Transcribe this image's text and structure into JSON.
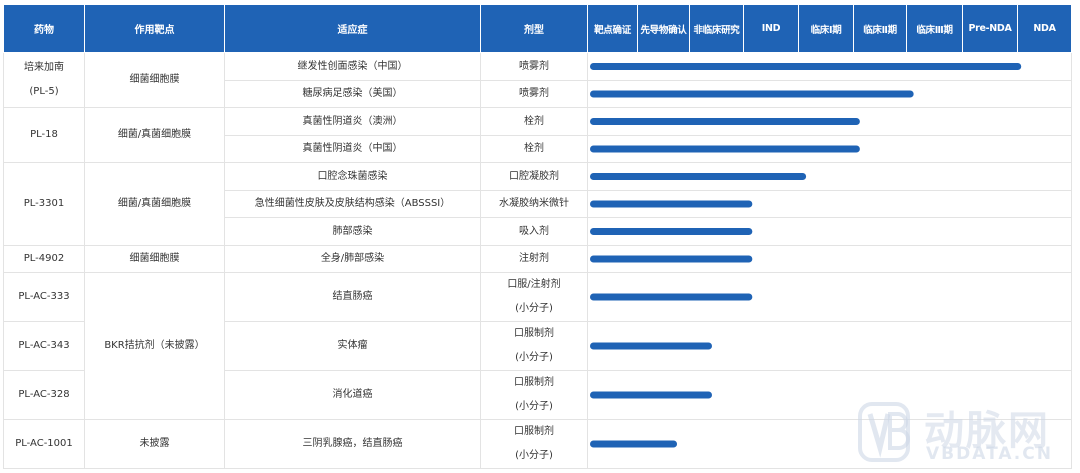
{
  "headers": {
    "drug": "药物",
    "target": "作用靶点",
    "indication": "适应症",
    "form": "剂型",
    "stages": [
      "靶点确证",
      "先导物确认",
      "非临床研究",
      "IND",
      "临床Ⅰ期",
      "临床Ⅱ期",
      "临床Ⅲ期",
      "Pre-NDA",
      "NDA"
    ]
  },
  "chart_data": {
    "type": "bar",
    "orientation": "horizontal",
    "stages": [
      "靶点确证",
      "先导物确认",
      "非临床研究",
      "IND",
      "临床Ⅰ期",
      "临床Ⅱ期",
      "临床Ⅲ期",
      "Pre-NDA",
      "NDA"
    ],
    "xlim": [
      0,
      9
    ],
    "bar_color": "#1f63b5",
    "groups": [
      {
        "drug": [
          "培来加南",
          "(PL-5)"
        ],
        "target": "细菌细胞膜",
        "rows": [
          {
            "indication": "继发性创面感染（中国）",
            "form": [
              "喷雾剂"
            ],
            "progress": 8.0
          },
          {
            "indication": "糖尿病足感染（美国）",
            "form": [
              "喷雾剂"
            ],
            "progress": 6.0
          }
        ]
      },
      {
        "drug": [
          "PL-18"
        ],
        "target": "细菌/真菌细胞膜",
        "rows": [
          {
            "indication": "真菌性阴道炎（澳洲）",
            "form": [
              "栓剂"
            ],
            "progress": 5.0
          },
          {
            "indication": "真菌性阴道炎（中国）",
            "form": [
              "栓剂"
            ],
            "progress": 5.0
          }
        ]
      },
      {
        "drug": [
          "PL-3301"
        ],
        "target": "细菌/真菌细胞膜",
        "rows": [
          {
            "indication": "口腔念珠菌感染",
            "form": [
              "口腔凝胶剂"
            ],
            "progress": 4.0
          },
          {
            "indication": "急性细菌性皮肤及皮肤结构感染（ABSSSI）",
            "form": [
              "水凝胶纳米微针"
            ],
            "progress": 3.0
          },
          {
            "indication": "肺部感染",
            "form": [
              "吸入剂"
            ],
            "progress": 3.0
          }
        ]
      },
      {
        "drug": [
          "PL-4902"
        ],
        "target": "细菌细胞膜",
        "rows": [
          {
            "indication": "全身/肺部感染",
            "form": [
              "注射剂"
            ],
            "progress": 3.0
          }
        ]
      },
      {
        "drug": [
          "PL-AC-333"
        ],
        "target": "BKR拮抗剂（未披露）",
        "target_rowspan": 3,
        "rows": [
          {
            "indication": "结直肠癌",
            "form": [
              "口服/注射剂",
              "(小分子)"
            ],
            "progress": 3.0
          }
        ]
      },
      {
        "drug": [
          "PL-AC-343"
        ],
        "target": null,
        "rows": [
          {
            "indication": "实体瘤",
            "form": [
              "口服制剂",
              "(小分子)"
            ],
            "progress": 2.25
          }
        ]
      },
      {
        "drug": [
          "PL-AC-328"
        ],
        "target": null,
        "rows": [
          {
            "indication": "消化道癌",
            "form": [
              "口服制剂",
              "(小分子)"
            ],
            "progress": 2.25
          }
        ]
      },
      {
        "drug": [
          "PL-AC-1001"
        ],
        "target": "未披露",
        "rows": [
          {
            "indication": "三阴乳腺癌，结直肠癌",
            "form": [
              "口服制剂",
              "(小分子)"
            ],
            "progress": 1.6
          }
        ]
      }
    ]
  },
  "watermark": {
    "cn": "动脉网",
    "en": "VBDATA.CN"
  }
}
